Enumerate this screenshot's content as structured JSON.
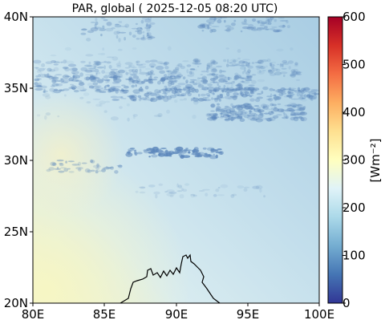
{
  "title": "PAR, global ( 2025-12-05 08:20 UTC)",
  "map": {
    "x_ticks": [
      "80E",
      "85E",
      "90E",
      "95E",
      "100E"
    ],
    "y_ticks": [
      "20N",
      "25N",
      "30N",
      "35N",
      "40N"
    ],
    "lon_range": [
      80,
      100
    ],
    "lat_range": [
      20,
      40
    ],
    "coastline": "Bay of Bengal / Bangladesh coast (black line)"
  },
  "colorbar": {
    "label": "[Wm⁻²]",
    "ticks": [
      "0",
      "100",
      "200",
      "300",
      "400",
      "500",
      "600"
    ],
    "range": [
      0,
      600
    ],
    "colormap": "RdYlBu_r",
    "colors": [
      "#313695",
      "#4575b4",
      "#74add1",
      "#abd9e9",
      "#e0f3f8",
      "#ffffbf",
      "#fee090",
      "#fdae61",
      "#f46d43",
      "#d73027",
      "#a50026"
    ]
  },
  "colors": {
    "background_field": "#bcd9e8",
    "cloud": "#5b86bb",
    "coastline": "#000000"
  }
}
